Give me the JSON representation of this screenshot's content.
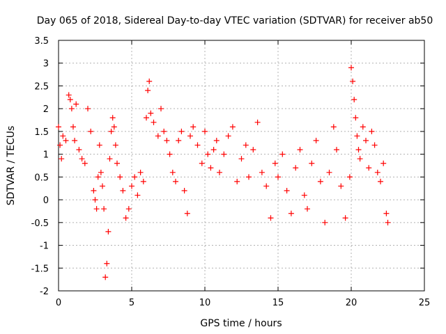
{
  "chart_data": {
    "type": "scatter",
    "title": "Day 065 of 2018, Sidereal Day-to-day VTEC variation (SDTVAR) for receiver ab50",
    "xlabel": "GPS time / hours",
    "ylabel": "SDTVAR / TECUs",
    "xlim": [
      0,
      25
    ],
    "ylim": [
      -2,
      3.5
    ],
    "xticks": [
      0,
      5,
      10,
      15,
      20,
      25
    ],
    "xtick_labels": [
      "0",
      "5",
      "10",
      "15",
      "20",
      "25"
    ],
    "yticks": [
      -2,
      -1.5,
      -1,
      -0.5,
      0,
      0.5,
      1,
      1.5,
      2,
      2.5,
      3,
      3.5
    ],
    "ytick_labels": [
      "-2",
      "-1.5",
      "-1",
      "-0.5",
      "0",
      "0.5",
      "1",
      "1.5",
      "2",
      "2.5",
      "3",
      "3.5"
    ],
    "grid": true,
    "marker": "+",
    "series": [
      {
        "name": "SDTVAR",
        "color": "#ff0000",
        "x": [
          0.0,
          0.1,
          0.2,
          0.3,
          0.5,
          0.7,
          0.8,
          0.9,
          1.0,
          1.1,
          1.2,
          1.4,
          1.6,
          1.8,
          2.0,
          2.2,
          2.4,
          2.5,
          2.6,
          2.7,
          2.8,
          2.9,
          3.0,
          3.1,
          3.2,
          3.3,
          3.4,
          3.5,
          3.6,
          3.7,
          3.8,
          3.9,
          4.0,
          4.2,
          4.4,
          4.6,
          4.8,
          5.0,
          5.2,
          5.4,
          5.6,
          5.8,
          6.0,
          6.1,
          6.2,
          6.3,
          6.5,
          6.8,
          7.0,
          7.2,
          7.4,
          7.6,
          7.8,
          8.0,
          8.2,
          8.4,
          8.6,
          8.8,
          9.0,
          9.2,
          9.5,
          9.8,
          10.0,
          10.2,
          10.4,
          10.6,
          10.8,
          11.0,
          11.3,
          11.6,
          11.9,
          12.2,
          12.5,
          12.8,
          13.0,
          13.3,
          13.6,
          13.9,
          14.2,
          14.5,
          14.8,
          15.0,
          15.3,
          15.6,
          15.9,
          16.2,
          16.5,
          16.8,
          17.0,
          17.3,
          17.6,
          17.9,
          18.2,
          18.5,
          18.8,
          19.0,
          19.3,
          19.6,
          19.9,
          20.0,
          20.1,
          20.2,
          20.3,
          20.4,
          20.5,
          20.6,
          20.8,
          21.0,
          21.2,
          21.4,
          21.6,
          21.8,
          22.0,
          22.2,
          22.4,
          22.5
        ],
        "y": [
          1.6,
          1.2,
          0.9,
          1.4,
          1.3,
          2.3,
          2.2,
          2.0,
          1.6,
          1.3,
          2.1,
          1.1,
          0.9,
          0.8,
          2.0,
          1.5,
          0.2,
          0.0,
          -0.2,
          0.5,
          1.2,
          0.6,
          0.3,
          -0.2,
          -1.7,
          -1.4,
          -0.7,
          0.9,
          1.5,
          1.8,
          1.6,
          1.2,
          0.8,
          0.5,
          0.2,
          -0.4,
          -0.2,
          0.3,
          0.5,
          0.1,
          0.6,
          0.4,
          1.8,
          2.4,
          2.6,
          1.9,
          1.7,
          1.4,
          2.0,
          1.5,
          1.3,
          1.0,
          0.6,
          0.4,
          1.3,
          1.5,
          0.2,
          -0.3,
          1.4,
          1.6,
          1.2,
          0.8,
          1.5,
          1.0,
          0.7,
          1.1,
          1.3,
          0.6,
          1.0,
          1.4,
          1.6,
          0.4,
          0.9,
          1.2,
          0.5,
          1.1,
          1.7,
          0.6,
          0.3,
          -0.4,
          0.8,
          0.5,
          1.0,
          0.2,
          -0.3,
          0.7,
          1.1,
          0.1,
          -0.2,
          0.8,
          1.3,
          0.4,
          -0.5,
          0.6,
          1.6,
          1.1,
          0.3,
          -0.4,
          0.5,
          2.9,
          2.6,
          2.2,
          1.8,
          1.4,
          1.1,
          0.9,
          1.6,
          1.3,
          0.7,
          1.5,
          1.2,
          0.6,
          0.4,
          0.8,
          -0.3,
          -0.5
        ]
      }
    ]
  }
}
